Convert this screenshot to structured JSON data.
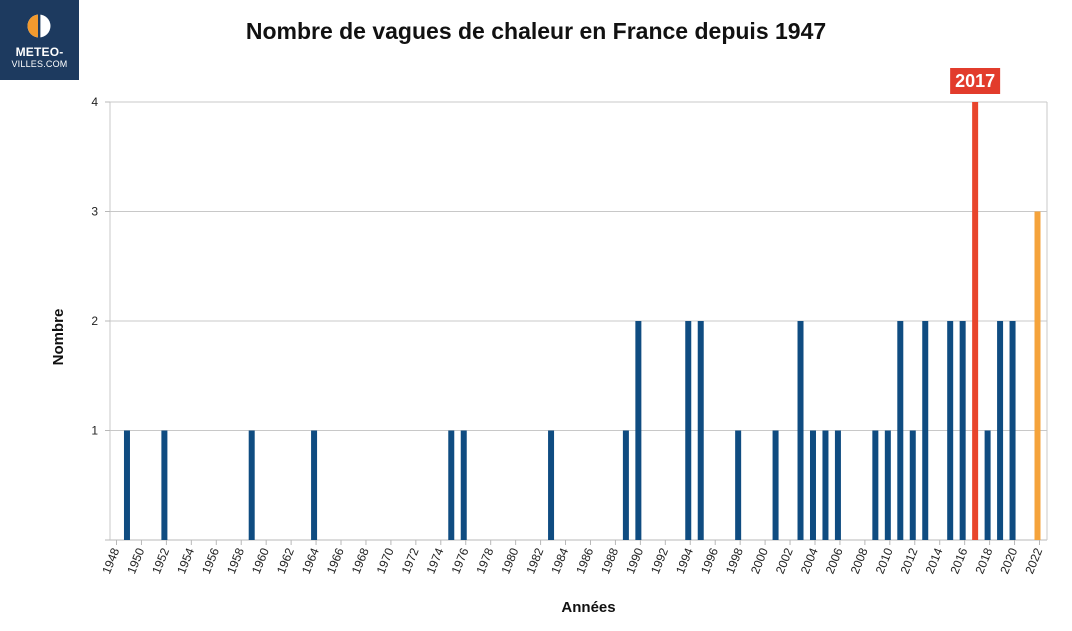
{
  "logo": {
    "line1": "METEO-",
    "line2": "VILLES.COM"
  },
  "chart_data": {
    "type": "bar",
    "title": "Nombre de vagues de chaleur en France depuis 1947",
    "xlabel": "Années",
    "ylabel": "Nombre",
    "xlim": [
      1948,
      2022
    ],
    "ylim": [
      0,
      4
    ],
    "yticks": [
      1,
      2,
      3,
      4
    ],
    "xticks": [
      "1948",
      "1950",
      "1952",
      "1954",
      "1956",
      "1958",
      "1960",
      "1962",
      "1964",
      "1966",
      "1968",
      "1970",
      "1972",
      "1974",
      "1976",
      "1978",
      "1980",
      "1982",
      "1984",
      "1986",
      "1988",
      "1990",
      "1992",
      "1994",
      "1996",
      "1998",
      "2000",
      "2002",
      "2004",
      "2006",
      "2008",
      "2010",
      "2012",
      "2014",
      "2016",
      "2018",
      "2020",
      "2022"
    ],
    "grid": true,
    "colors": {
      "default": "#0f4c81",
      "highlight": "#e8452c",
      "latest": "#f5a33b",
      "annotation": "#e23c2c"
    },
    "bars": [
      {
        "year": 1949,
        "value": 1
      },
      {
        "year": 1952,
        "value": 1
      },
      {
        "year": 1959,
        "value": 1
      },
      {
        "year": 1964,
        "value": 1
      },
      {
        "year": 1975,
        "value": 1
      },
      {
        "year": 1976,
        "value": 1
      },
      {
        "year": 1983,
        "value": 1
      },
      {
        "year": 1989,
        "value": 1
      },
      {
        "year": 1990,
        "value": 2
      },
      {
        "year": 1994,
        "value": 2
      },
      {
        "year": 1995,
        "value": 2
      },
      {
        "year": 1998,
        "value": 1
      },
      {
        "year": 2001,
        "value": 1
      },
      {
        "year": 2003,
        "value": 2
      },
      {
        "year": 2004,
        "value": 1
      },
      {
        "year": 2005,
        "value": 1
      },
      {
        "year": 2006,
        "value": 1
      },
      {
        "year": 2009,
        "value": 1
      },
      {
        "year": 2010,
        "value": 1
      },
      {
        "year": 2011,
        "value": 2
      },
      {
        "year": 2012,
        "value": 1
      },
      {
        "year": 2013,
        "value": 2
      },
      {
        "year": 2015,
        "value": 2
      },
      {
        "year": 2016,
        "value": 2
      },
      {
        "year": 2017,
        "value": 4,
        "color": "highlight"
      },
      {
        "year": 2018,
        "value": 1
      },
      {
        "year": 2019,
        "value": 2
      },
      {
        "year": 2020,
        "value": 2
      },
      {
        "year": 2022,
        "value": 3,
        "color": "latest"
      }
    ],
    "annotation": {
      "label": "2017",
      "year": 2017
    }
  }
}
